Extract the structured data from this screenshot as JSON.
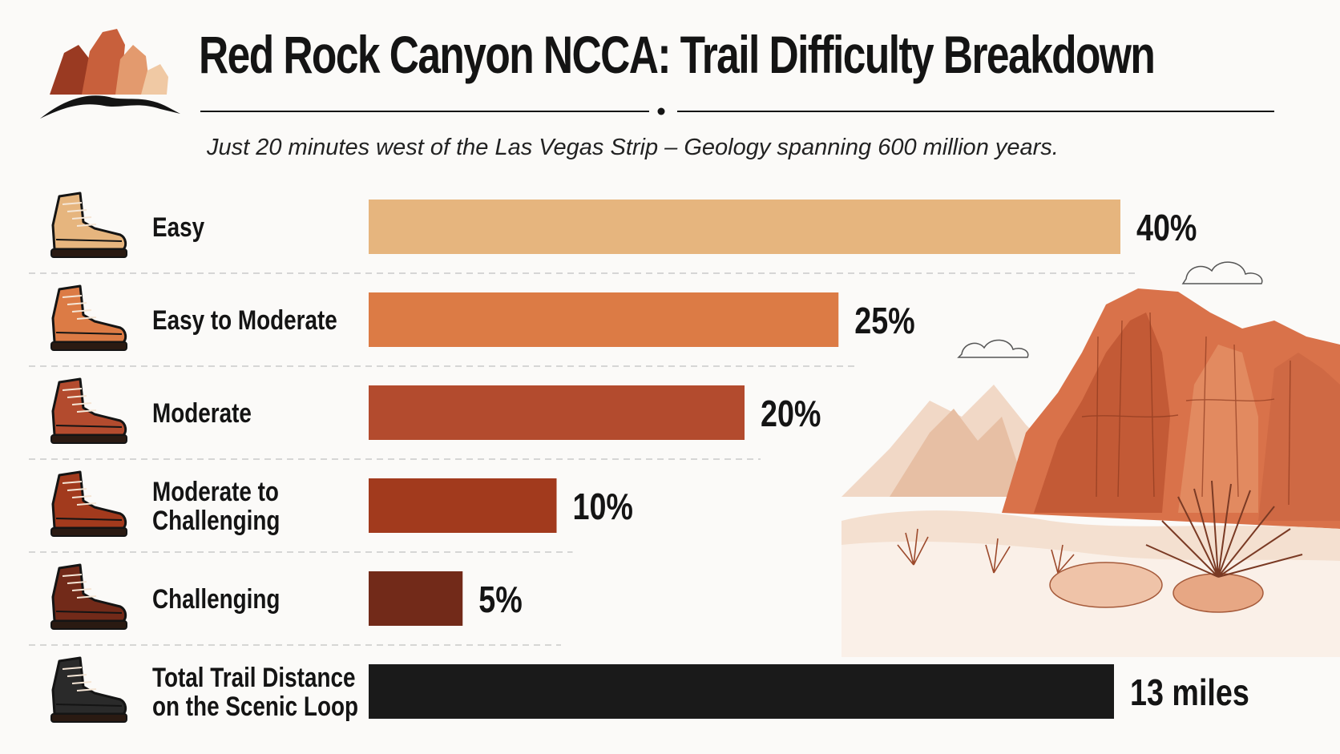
{
  "header": {
    "title": "Red Rock Canyon NCCA: Trail Difficulty Breakdown",
    "subtitle": "Just 20 minutes west of the Las Vegas Strip – Geology spanning 600 million years."
  },
  "chart_data": {
    "type": "bar",
    "orientation": "horizontal",
    "title": "Red Rock Canyon NCCA: Trail Difficulty Breakdown",
    "subtitle": "Just 20 minutes west of the Las Vegas Strip – Geology spanning 600 million years.",
    "xlabel": "",
    "ylabel": "",
    "grid": false,
    "xlim": [
      0,
      40
    ],
    "categories": [
      "Easy",
      "Easy to Moderate",
      "Moderate",
      "Moderate to Challenging",
      "Challenging"
    ],
    "values": [
      40,
      25,
      20,
      10,
      5
    ],
    "value_labels": [
      "40%",
      "25%",
      "20%",
      "10%",
      "5%"
    ],
    "colors": [
      "#e6b57e",
      "#dc7b45",
      "#b34b2e",
      "#a23a1d",
      "#722a19"
    ],
    "summary": {
      "label": "Total Trail Distance on the Scenic Loop",
      "value": 13,
      "value_label": "13 miles",
      "color": "#1a1a1a"
    }
  },
  "icons": {
    "logo": "red-rock-logo-icon",
    "row_icon": "hiking-boot-icon",
    "scenery": "canyon-scenery-illustration"
  }
}
